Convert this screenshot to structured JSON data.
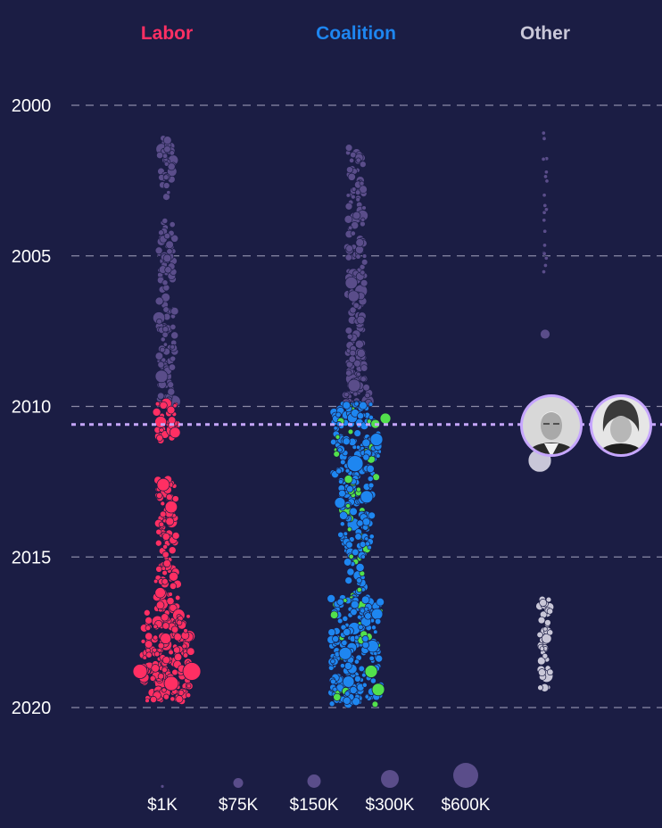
{
  "colors": {
    "background": "#1b1d44",
    "labor": "#ff2f63",
    "coalition": "#1e86f0",
    "coalition_alt": "#52e04c",
    "other": "#c9c7d8",
    "early_years": "#5a4d8a",
    "grid": "#8b8aa6",
    "marker_line": "#c6a6ff",
    "text": "#ffffff"
  },
  "chart_data": {
    "type": "scatter",
    "title": "",
    "columns": [
      {
        "key": "labor",
        "label": "Labor"
      },
      {
        "key": "coalition",
        "label": "Coalition"
      },
      {
        "key": "other",
        "label": "Other"
      }
    ],
    "y_ticks": [
      "2000",
      "2005",
      "2010",
      "2015",
      "2020"
    ],
    "ylim": [
      2000,
      2020
    ],
    "marker_year": 2010.6,
    "marker_icons": [
      "portrait-icon-man",
      "portrait-icon-woman"
    ],
    "size_legend": [
      {
        "label": "$1K",
        "amount": 1000
      },
      {
        "label": "$75K",
        "amount": 75000
      },
      {
        "label": "$150K",
        "amount": 150000
      },
      {
        "label": "$300K",
        "amount": 300000
      },
      {
        "label": "$600K",
        "amount": 600000
      }
    ],
    "density_segments": {
      "labor": [
        [
          2000.9,
          2003.1,
          8,
          "early"
        ],
        [
          2003.8,
          2009.9,
          9,
          "early"
        ],
        [
          2009.9,
          2011.2,
          12,
          "main"
        ],
        [
          2012.4,
          2015.6,
          11,
          "main"
        ],
        [
          2015.6,
          2016.8,
          13,
          "main"
        ],
        [
          2016.8,
          2019.8,
          27,
          "main"
        ]
      ],
      "coalition": [
        [
          2001.4,
          2004.4,
          9,
          "early"
        ],
        [
          2004.4,
          2009.3,
          10,
          "early"
        ],
        [
          2009.3,
          2009.9,
          16,
          "early"
        ],
        [
          2009.9,
          2012.4,
          26,
          "main"
        ],
        [
          2012.4,
          2014.8,
          18,
          "main"
        ],
        [
          2014.8,
          2016.3,
          10,
          "main"
        ],
        [
          2016.3,
          2019.9,
          28,
          "main"
        ]
      ],
      "other": [
        [
          2000.9,
          2005.6,
          2,
          "early"
        ],
        [
          2016.4,
          2019.4,
          6,
          "other"
        ]
      ]
    }
  }
}
